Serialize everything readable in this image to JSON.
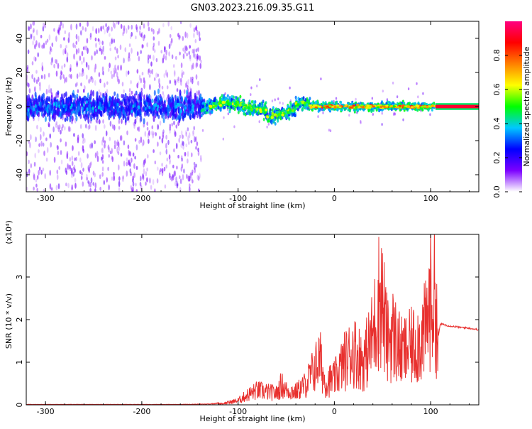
{
  "title": "GN03.2023.216.09.35.G11",
  "colors": {
    "snr_line": "#e8302e",
    "axis": "#000000",
    "purple": "#7c1cf0",
    "light_purple": "#c9a2f7"
  },
  "chart_data": [
    {
      "type": "heatmap",
      "title": "GN03.2023.216.09.35.G11",
      "xlabel": "Height of straight line (km)",
      "ylabel": "Frequency (Hz)",
      "xlim": [
        -320,
        150
      ],
      "ylim": [
        -50,
        50
      ],
      "xticks": [
        -300,
        -200,
        -100,
        0,
        100
      ],
      "yticks": [
        -40,
        -20,
        0,
        20,
        40
      ],
      "colorbar": {
        "label": "Normalized spectral amplitude",
        "range": [
          0.0,
          1.0
        ],
        "ticks": [
          0.0,
          0.2,
          0.4,
          0.6,
          0.8
        ],
        "colormap": [
          "#ffffff",
          "#7c00ff",
          "#0000ff",
          "#00c8ff",
          "#00ff00",
          "#ffff00",
          "#ff8000",
          "#ff0000",
          "#ff0080"
        ]
      },
      "features": [
        {
          "x_range": [
            -320,
            -138
          ],
          "freq_spread": 50,
          "amplitude": "scattered low (0.05-0.3)"
        },
        {
          "x_range": [
            -320,
            -138
          ],
          "freq_spread": 10,
          "amplitude": "dense band 0.2-0.4"
        },
        {
          "x_range": [
            -138,
            -25
          ],
          "freq_spread": 8,
          "amplitude": "band 0.3-0.6 wavy"
        },
        {
          "x_range": [
            -25,
            105
          ],
          "freq_spread": 4,
          "amplitude": "narrow band 0.5-0.9"
        },
        {
          "x_range": [
            105,
            150
          ],
          "freq_spread": 2,
          "amplitude": "flat line ~0.9"
        }
      ]
    },
    {
      "type": "line",
      "xlabel": "Height of straight line (km)",
      "ylabel": "SNR (10 * v/v)",
      "yscale_label": "(x10⁴)",
      "xlim": [
        -320,
        150
      ],
      "ylim": [
        0,
        4
      ],
      "xticks": [
        -300,
        -200,
        -100,
        0,
        100
      ],
      "yticks": [
        0,
        1,
        2,
        3
      ],
      "series": [
        {
          "x": [
            -320,
            -280,
            -240,
            -200,
            -160,
            -130,
            -115,
            -100,
            -90,
            -80,
            -70,
            -60,
            -55,
            -50,
            -40,
            -30,
            -20,
            -15,
            -10,
            0,
            10,
            20,
            30,
            40,
            48,
            55,
            60,
            70,
            80,
            90,
            95,
            100,
            105,
            108,
            110,
            120,
            130,
            140,
            150
          ],
          "y": [
            0.01,
            0.01,
            0.01,
            0.01,
            0.01,
            0.02,
            0.05,
            0.15,
            0.35,
            0.5,
            0.45,
            0.4,
            0.7,
            0.5,
            0.45,
            0.7,
            1.3,
            1.6,
            0.8,
            0.9,
            1.5,
            1.9,
            1.5,
            2.4,
            4.0,
            2.2,
            2.5,
            1.8,
            2.0,
            2.3,
            2.6,
            3.7,
            3.7,
            1.6,
            1.9,
            1.85,
            1.82,
            1.8,
            1.76
          ]
        }
      ]
    }
  ],
  "charts_text": {
    "top_xlabel": "Height of straight line (km)",
    "top_ylabel": "Frequency (Hz)",
    "bottom_xlabel": "Height of straight line (km)",
    "bottom_ylabel": "SNR (10 * v/v)",
    "bottom_scale": "(x10⁴)",
    "cbar_label": "Normalized spectral amplitude"
  }
}
